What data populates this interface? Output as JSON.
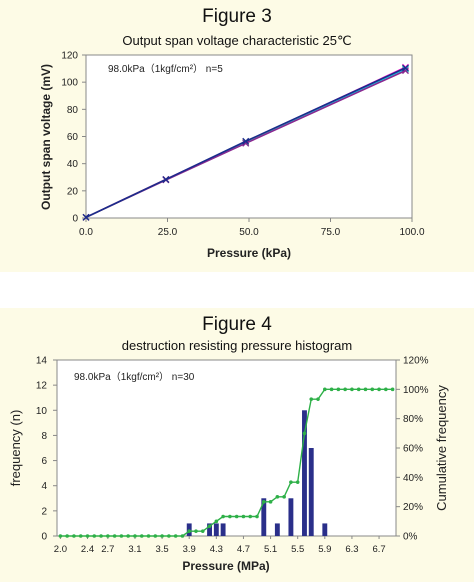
{
  "charts": [
    {
      "figure_label": "Figure 3",
      "title": "Output span voltage characteristic 25℃",
      "annotation": "98.0kPa（1kgf/cm²）  n=5"
    },
    {
      "figure_label": "Figure 4",
      "title": "destruction resisting pressure histogram",
      "annotation": "98.0kPa（1kgf/cm²）  n=30"
    }
  ],
  "chart_data": [
    {
      "type": "line",
      "title": "Output span voltage characteristic 25℃",
      "xlabel": "Pressure (kPa)",
      "ylabel": "Output span voltage (mV)",
      "xlim": [
        0,
        100
      ],
      "ylim": [
        0,
        120
      ],
      "xticks": [
        "0.0",
        "25.0",
        "50.0",
        "75.0",
        "100.0"
      ],
      "yticks": [
        "0",
        "20",
        "40",
        "60",
        "80",
        "100",
        "120"
      ],
      "x": [
        0,
        24.5,
        49,
        98
      ],
      "series": [
        {
          "values": [
            0.5,
            28.5,
            56,
            111
          ],
          "color": "#ff1fcc"
        },
        {
          "values": [
            0.5,
            28.3,
            55.5,
            110
          ],
          "color": "#e8e000"
        },
        {
          "values": [
            0.5,
            28.2,
            55.2,
            109.5
          ],
          "color": "#18c8e0"
        },
        {
          "values": [
            0.5,
            28.0,
            55.0,
            108.5
          ],
          "color": "#8a2890"
        },
        {
          "values": [
            0.5,
            28.4,
            56.5,
            110.5
          ],
          "color": "#1a2c8c"
        }
      ],
      "grid": false
    },
    {
      "type": "bar",
      "title": "destruction resisting pressure histogram",
      "xlabel": "Pressure (MPa)",
      "ylabel": "frequency (n)",
      "y2label": "Cumulative frequency",
      "ylim": [
        0,
        14
      ],
      "y2lim": [
        0,
        120
      ],
      "yticks": [
        "0",
        "2",
        "4",
        "6",
        "8",
        "10",
        "12",
        "14"
      ],
      "y2ticks": [
        "0%",
        "20%",
        "40%",
        "60%",
        "80%",
        "100%",
        "120%"
      ],
      "xticks": [
        "2.0",
        "2.4",
        "2.7",
        "3.1",
        "3.5",
        "3.9",
        "4.3",
        "4.7",
        "5.1",
        "5.5",
        "5.9",
        "6.3",
        "6.7"
      ],
      "bin_centers": [
        2.0,
        2.1,
        2.2,
        2.3,
        2.4,
        2.5,
        2.6,
        2.7,
        2.8,
        2.9,
        3.0,
        3.1,
        3.2,
        3.3,
        3.4,
        3.5,
        3.6,
        3.7,
        3.8,
        3.9,
        4.0,
        4.1,
        4.2,
        4.3,
        4.4,
        4.5,
        4.6,
        4.7,
        4.8,
        4.9,
        5.0,
        5.1,
        5.2,
        5.3,
        5.4,
        5.5,
        5.6,
        5.7,
        5.8,
        5.9,
        6.0,
        6.1,
        6.2,
        6.3,
        6.4,
        6.5,
        6.6,
        6.7,
        6.8,
        6.9
      ],
      "frequency": [
        0,
        0,
        0,
        0,
        0,
        0,
        0,
        0,
        0,
        0,
        0,
        0,
        0,
        0,
        0,
        0,
        0,
        0,
        0,
        1,
        0,
        0,
        1,
        1,
        1,
        0,
        0,
        0,
        0,
        0,
        3,
        0,
        1,
        0,
        3,
        0,
        10,
        7,
        0,
        1,
        0,
        0,
        0,
        0,
        0,
        0,
        0,
        0,
        0,
        0
      ],
      "cumulative_percent": [
        0,
        0,
        0,
        0,
        0,
        0,
        0,
        0,
        0,
        0,
        0,
        0,
        0,
        0,
        0,
        0,
        0,
        0,
        0,
        3.3,
        3.3,
        3.3,
        6.7,
        10,
        13.3,
        13.3,
        13.3,
        13.3,
        13.3,
        13.3,
        23.3,
        23.3,
        26.7,
        26.7,
        36.7,
        36.7,
        70,
        93.3,
        93.3,
        100,
        100,
        100,
        100,
        100,
        100,
        100,
        100,
        100,
        100,
        100
      ],
      "bar_color": "#2a2f8a",
      "line_color": "#2eb048",
      "grid": false
    }
  ]
}
